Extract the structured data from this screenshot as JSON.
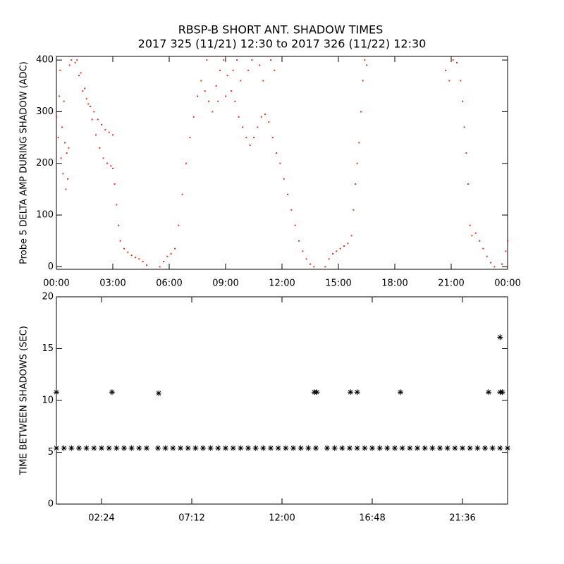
{
  "chart_data": [
    {
      "type": "scatter",
      "title": "RBSP-B SHORT ANT. SHADOW TIMES",
      "subtitle": "2017 325 (11/21) 12:30 to 2017 326 (11/22) 12:30",
      "ylabel": "Probe 5 DELTA AMP DURING SHADOW (ADC)",
      "color": "#e8321e",
      "marker": "dot",
      "xlim": [
        0,
        24
      ],
      "ylim": [
        -5,
        407
      ],
      "xticks": [
        {
          "value": 0,
          "label": "00:00"
        },
        {
          "value": 3,
          "label": "03:00"
        },
        {
          "value": 6,
          "label": "06:00"
        },
        {
          "value": 9,
          "label": "09:00"
        },
        {
          "value": 12,
          "label": "12:00"
        },
        {
          "value": 15,
          "label": "15:00"
        },
        {
          "value": 18,
          "label": "18:00"
        },
        {
          "value": 21,
          "label": "21:00"
        },
        {
          "value": 24,
          "label": "00:00"
        }
      ],
      "yticks": [
        0,
        100,
        200,
        300,
        400
      ],
      "x": [
        0.0,
        0.1,
        0.15,
        0.2,
        0.25,
        0.3,
        0.35,
        0.4,
        0.45,
        0.5,
        0.55,
        0.6,
        0.65,
        0.7,
        0.8,
        1.0,
        1.2,
        1.4,
        1.6,
        1.8,
        2.0,
        2.2,
        2.4,
        2.6,
        2.8,
        3.0,
        1.1,
        1.3,
        1.5,
        1.7,
        1.9,
        2.1,
        2.3,
        2.5,
        2.7,
        2.9,
        3.0,
        3.1,
        3.2,
        3.3,
        3.4,
        3.6,
        3.8,
        4.0,
        4.2,
        4.4,
        4.6,
        4.8,
        5.5,
        5.7,
        5.9,
        6.1,
        6.3,
        6.5,
        6.7,
        6.9,
        7.1,
        7.3,
        7.5,
        7.7,
        7.9,
        8.1,
        8.3,
        8.5,
        8.7,
        8.9,
        9.1,
        9.3,
        9.5,
        9.7,
        9.9,
        10.1,
        10.3,
        10.5,
        10.7,
        10.9,
        11.1,
        11.3,
        11.5,
        11.7,
        11.9,
        12.1,
        12.3,
        12.5,
        12.7,
        12.9,
        13.1,
        13.3,
        13.5,
        13.7,
        9.0,
        9.4,
        9.8,
        10.2,
        10.4,
        10.8,
        11.0,
        11.4,
        11.6,
        8.0,
        8.6,
        9.6,
        14.3,
        14.5,
        14.7,
        14.9,
        15.1,
        15.3,
        15.5,
        15.7,
        15.8,
        15.9,
        16.0,
        16.1,
        16.2,
        16.3,
        16.4,
        16.5,
        20.7,
        20.9,
        21.1,
        21.3,
        21.5,
        21.6,
        21.7,
        21.8,
        21.9,
        22.0,
        22.1,
        22.3,
        22.5,
        22.7,
        22.9,
        23.1,
        23.3,
        23.7,
        23.9,
        24.0
      ],
      "values": [
        290,
        250,
        330,
        380,
        210,
        270,
        180,
        320,
        240,
        150,
        220,
        170,
        230,
        390,
        400,
        395,
        370,
        340,
        325,
        310,
        300,
        285,
        275,
        265,
        260,
        255,
        400,
        375,
        345,
        315,
        285,
        255,
        230,
        210,
        200,
        195,
        190,
        160,
        120,
        80,
        50,
        35,
        28,
        22,
        18,
        15,
        10,
        3,
        0,
        10,
        20,
        25,
        35,
        80,
        140,
        200,
        250,
        290,
        330,
        360,
        340,
        320,
        300,
        350,
        380,
        400,
        370,
        340,
        320,
        290,
        270,
        250,
        235,
        250,
        270,
        290,
        295,
        280,
        250,
        220,
        200,
        170,
        140,
        110,
        80,
        50,
        30,
        15,
        5,
        0,
        330,
        380,
        360,
        380,
        400,
        390,
        360,
        400,
        380,
        400,
        320,
        400,
        0,
        15,
        25,
        30,
        35,
        40,
        45,
        60,
        110,
        160,
        200,
        240,
        300,
        360,
        400,
        390,
        380,
        360,
        400,
        395,
        360,
        320,
        270,
        220,
        160,
        80,
        60,
        65,
        50,
        35,
        20,
        8,
        0,
        5,
        30,
        50
      ]
    },
    {
      "type": "scatter",
      "ylabel": "TIME BETWEEN SHADOWS (SEC)",
      "color": "#000000",
      "marker": "asterisk",
      "xlim": [
        0,
        24
      ],
      "ylim": [
        0,
        20
      ],
      "xticks": [
        {
          "value": 2.4,
          "label": "02:24"
        },
        {
          "value": 7.2,
          "label": "07:12"
        },
        {
          "value": 12,
          "label": "12:00"
        },
        {
          "value": 16.8,
          "label": "16:48"
        },
        {
          "value": 21.6,
          "label": "21:36"
        }
      ],
      "yticks": [
        0,
        5,
        10,
        15,
        20
      ],
      "x": [
        0.0,
        0.4,
        0.8,
        1.2,
        1.6,
        2.0,
        2.4,
        2.8,
        3.2,
        3.6,
        4.0,
        4.4,
        4.8,
        5.4,
        5.8,
        6.2,
        6.6,
        7.0,
        7.4,
        7.8,
        8.2,
        8.6,
        9.0,
        9.4,
        9.8,
        10.2,
        10.6,
        11.0,
        11.4,
        11.8,
        12.2,
        12.6,
        13.0,
        13.4,
        13.8,
        14.4,
        14.8,
        15.2,
        15.6,
        16.0,
        16.4,
        16.8,
        17.2,
        17.6,
        18.0,
        18.4,
        18.8,
        19.2,
        19.6,
        20.0,
        20.4,
        20.8,
        21.2,
        21.6,
        22.0,
        22.4,
        22.8,
        23.2,
        23.6,
        24.0,
        0.0,
        2.96,
        5.44,
        13.72,
        13.85,
        15.64,
        16.0,
        18.3,
        22.99,
        23.6,
        23.72,
        23.6
      ],
      "values": [
        5.4,
        5.4,
        5.4,
        5.4,
        5.4,
        5.4,
        5.4,
        5.4,
        5.4,
        5.4,
        5.4,
        5.4,
        5.4,
        5.4,
        5.4,
        5.4,
        5.4,
        5.4,
        5.4,
        5.4,
        5.4,
        5.4,
        5.4,
        5.4,
        5.4,
        5.4,
        5.4,
        5.4,
        5.4,
        5.4,
        5.4,
        5.4,
        5.4,
        5.4,
        5.4,
        5.4,
        5.4,
        5.4,
        5.4,
        5.4,
        5.4,
        5.4,
        5.4,
        5.4,
        5.4,
        5.4,
        5.4,
        5.4,
        5.4,
        5.4,
        5.4,
        5.4,
        5.4,
        5.4,
        5.4,
        5.4,
        5.4,
        5.4,
        5.4,
        5.4,
        10.8,
        10.8,
        10.7,
        10.8,
        10.8,
        10.8,
        10.8,
        10.8,
        10.8,
        10.8,
        10.8,
        16.1
      ]
    }
  ]
}
